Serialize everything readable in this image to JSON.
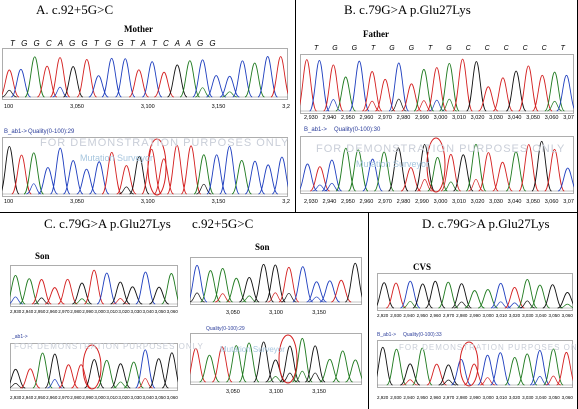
{
  "panels": {
    "A": {
      "label": "A.  c.92+5G>C",
      "title": "Mother",
      "bases": "T G G C A G G T G G T A T C A A G G",
      "top_ticks": [
        "305",
        "310",
        "315",
        "320"
      ],
      "upper_axis": [
        "100",
        "3,050",
        "3,100",
        "3,150",
        "3,2"
      ],
      "quality": "Quality(0-100):29",
      "prefix": "B_ab1->",
      "lower_ticks": [
        "310",
        "315"
      ],
      "lower_axis": [
        "100",
        "3,050",
        "3,100",
        "3,150",
        "3,2"
      ],
      "watermark": "FOR DEMONSTRATION PURPOSES ONLY",
      "watermark2": "Mutation Surveyor"
    },
    "B": {
      "label": "B.  c.79G>A p.Glu27Lys",
      "title": "Father",
      "bases": "T G G T G G T G C C C C C T",
      "top_ticks": [
        "285",
        "290",
        "295"
      ],
      "upper_axis": [
        "2,930",
        "2,940",
        "2,950",
        "2,960",
        "2,970",
        "2,980",
        "2,990",
        "3,000",
        "3,010",
        "3,020",
        "3,030",
        "3,040",
        "3,050",
        "3,060",
        "3,07"
      ],
      "quality": "Quality(0-100):30",
      "prefix": "B_ab1->",
      "lower_ticks": [
        "285",
        "290",
        "295"
      ],
      "lower_axis": [
        "2,930",
        "2,940",
        "2,950",
        "2,960",
        "2,970",
        "2,980",
        "2,990",
        "3,000",
        "3,010",
        "3,020",
        "3,030",
        "3,040",
        "3,050",
        "3,060",
        "3,07"
      ],
      "watermark": "FOR DEMONSTRATION PURPOSES ONLY",
      "watermark2": "Mutation Surveyor"
    },
    "C": {
      "label": "C.   c.79G>A p.Glu27Lys",
      "label2": "c.92+5G>C",
      "title": "Son",
      "title2": "Son",
      "left_axis": [
        "2,930",
        "2,940",
        "2,950",
        "2,960",
        "2,970",
        "2,980",
        "2,990",
        "3,000",
        "3,010",
        "3,020",
        "3,030",
        "3,040",
        "3,050",
        "3,060"
      ],
      "right_axis": [
        "3,050",
        "3,100",
        "3,150"
      ],
      "quality": "Quality(0-100):29",
      "prefix": "_ab1->",
      "watermark": "FOR DEMONSTRATION PURPOSES ONLY",
      "watermark2": "Mutation Surveyor"
    },
    "D": {
      "label": "D.   c.79G>A p.Glu27Lys",
      "title": "CVS",
      "upper_axis": [
        "2,920",
        "2,930",
        "2,940",
        "2,950",
        "2,960",
        "2,970",
        "2,980",
        "2,990",
        "3,000",
        "3,010",
        "3,020",
        "3,030",
        "3,040",
        "3,050",
        "3,060"
      ],
      "quality": "Quality(0-100):33",
      "prefix": "B_ab1->",
      "watermark": "FOR DEMONSTRATION PURPOSES ONLY",
      "watermark2": "Mutation Surveyor"
    }
  },
  "colors": {
    "A": "#1f7a1f",
    "C": "#1f3fbf",
    "G": "#111111",
    "T": "#d42020",
    "highlight": "#d42020",
    "quality_text": "#2a3c9a",
    "watermark": "#c9ced8"
  }
}
